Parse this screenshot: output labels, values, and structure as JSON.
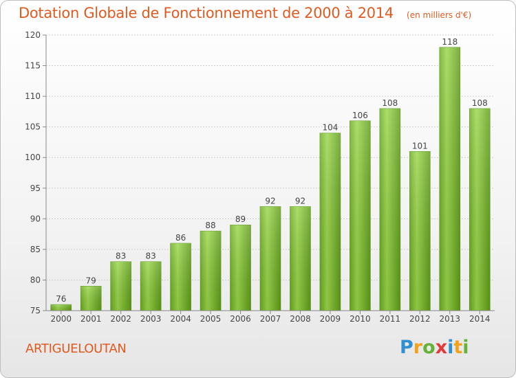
{
  "title": "Dotation Globale de Fonctionnement de 2000 à 2014",
  "subtitle": "(en milliers d'€)",
  "commune": "ARTIGUELOUTAN",
  "brand": {
    "letters": [
      "P",
      "r",
      "o",
      "x",
      "i",
      "t",
      "i"
    ],
    "colors": [
      "#2f8fd0",
      "#f2a21b",
      "#66b236",
      "#e23a3a",
      "#2f8fd0",
      "#f2a21b",
      "#66b236"
    ]
  },
  "chart_data": {
    "type": "bar",
    "categories": [
      "2000",
      "2001",
      "2002",
      "2003",
      "2004",
      "2005",
      "2006",
      "2007",
      "2008",
      "2009",
      "2010",
      "2011",
      "2012",
      "2013",
      "2014"
    ],
    "values": [
      76,
      79,
      83,
      83,
      86,
      88,
      89,
      92,
      92,
      104,
      106,
      108,
      101,
      118,
      108
    ],
    "ylim": [
      75,
      120
    ],
    "yticks": [
      75,
      80,
      85,
      90,
      95,
      100,
      105,
      110,
      115,
      120
    ],
    "grid": true,
    "bar_color": "#7cc02c"
  }
}
